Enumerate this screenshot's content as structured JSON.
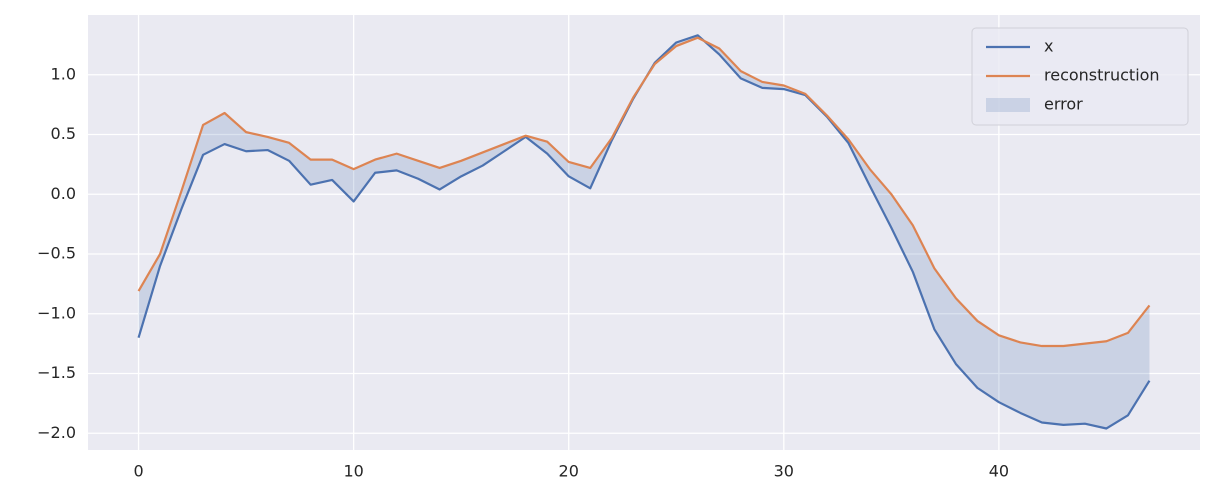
{
  "chart_data": {
    "type": "line",
    "x": [
      0,
      1,
      2,
      3,
      4,
      5,
      6,
      7,
      8,
      9,
      10,
      11,
      12,
      13,
      14,
      15,
      16,
      17,
      18,
      19,
      20,
      21,
      22,
      23,
      24,
      25,
      26,
      27,
      28,
      29,
      30,
      31,
      32,
      33,
      34,
      35,
      36,
      37,
      38,
      39,
      40,
      41,
      42,
      43,
      44,
      45,
      46,
      47
    ],
    "series": [
      {
        "name": "x",
        "color": "#4c72b0",
        "values": [
          -1.2,
          -0.6,
          -0.12,
          0.33,
          0.42,
          0.36,
          0.37,
          0.28,
          0.08,
          0.12,
          -0.06,
          0.18,
          0.2,
          0.13,
          0.04,
          0.15,
          0.24,
          0.36,
          0.48,
          0.34,
          0.15,
          0.05,
          0.45,
          0.8,
          1.1,
          1.27,
          1.33,
          1.17,
          0.97,
          0.89,
          0.88,
          0.83,
          0.65,
          0.43,
          0.07,
          -0.28,
          -0.65,
          -1.13,
          -1.42,
          -1.62,
          -1.74,
          -1.83,
          -1.91,
          -1.93,
          -1.92,
          -1.96,
          -1.85,
          -1.56
        ]
      },
      {
        "name": "reconstruction",
        "color": "#dd8452",
        "values": [
          -0.81,
          -0.5,
          0.03,
          0.58,
          0.68,
          0.52,
          0.48,
          0.43,
          0.29,
          0.29,
          0.21,
          0.29,
          0.34,
          0.28,
          0.22,
          0.28,
          0.35,
          0.42,
          0.49,
          0.44,
          0.27,
          0.22,
          0.47,
          0.81,
          1.09,
          1.24,
          1.31,
          1.22,
          1.03,
          0.94,
          0.91,
          0.84,
          0.66,
          0.46,
          0.21,
          0.0,
          -0.26,
          -0.62,
          -0.87,
          -1.06,
          -1.18,
          -1.24,
          -1.27,
          -1.27,
          -1.25,
          -1.23,
          -1.16,
          -0.93
        ]
      }
    ],
    "fill_between": {
      "name": "error",
      "color": "#4c72b0",
      "opacity": 0.2
    },
    "xlim": [
      -2.35,
      49.35
    ],
    "xticks": [
      0,
      10,
      20,
      30,
      40
    ],
    "ylim": [
      -2.14,
      1.5
    ],
    "yticks": [
      {
        "value": 1.0,
        "label": "1.0"
      },
      {
        "value": 0.5,
        "label": "0.5"
      },
      {
        "value": 0.0,
        "label": "0.0"
      },
      {
        "value": -0.5,
        "label": "−0.5"
      },
      {
        "value": -1.0,
        "label": "−1.0"
      },
      {
        "value": -1.5,
        "label": "−1.5"
      },
      {
        "value": -2.0,
        "label": "−2.0"
      }
    ],
    "grid": true,
    "legend": "upper right"
  }
}
